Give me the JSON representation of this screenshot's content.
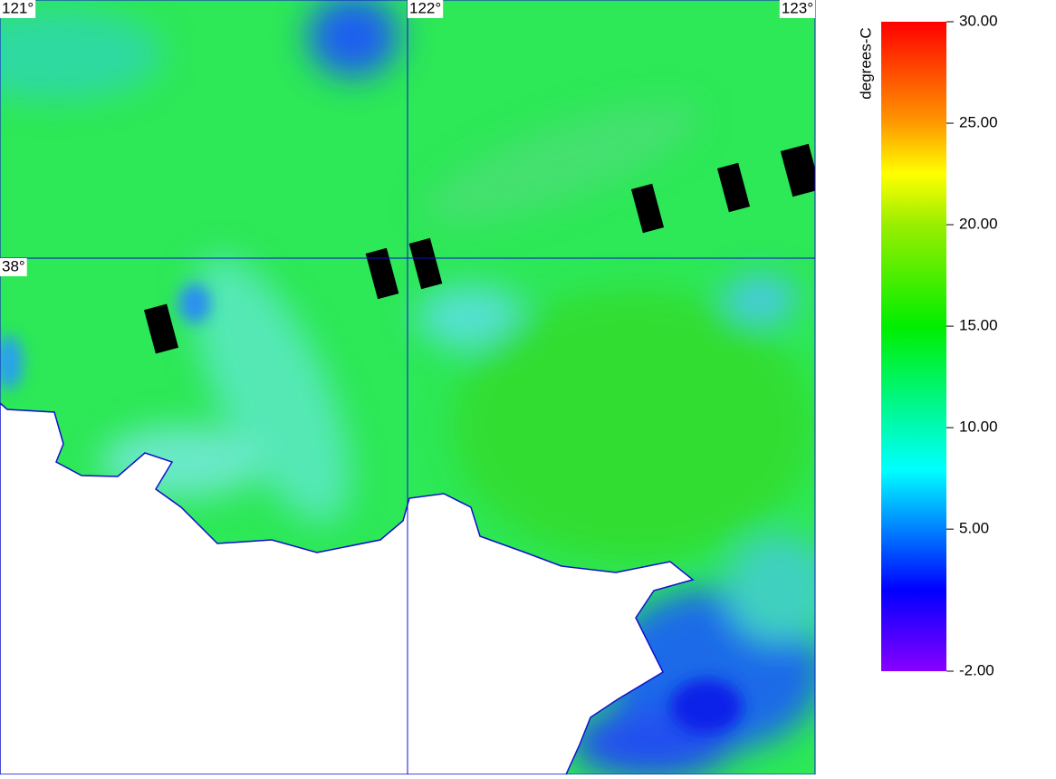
{
  "map": {
    "lonlim": [
      121,
      123
    ],
    "latlim": [
      37.0,
      38.5
    ],
    "lon_lines": [
      {
        "value": 121,
        "label": "121°"
      },
      {
        "value": 122,
        "label": "122°"
      },
      {
        "value": 123,
        "label": "123°"
      }
    ],
    "lat_lines": [
      {
        "value": 38,
        "label": "38°"
      }
    ]
  },
  "colorbar": {
    "label": "degrees-C",
    "lim": [
      -2,
      30
    ],
    "ticks": [
      {
        "value": 30,
        "label": "30.00"
      },
      {
        "value": 25,
        "label": "25.00"
      },
      {
        "value": 20,
        "label": "20.00"
      },
      {
        "value": 15,
        "label": "15.00"
      },
      {
        "value": 10,
        "label": "10.00"
      },
      {
        "value": 5,
        "label": "5.00"
      },
      {
        "value": -2,
        "label": "-2.00"
      }
    ]
  }
}
